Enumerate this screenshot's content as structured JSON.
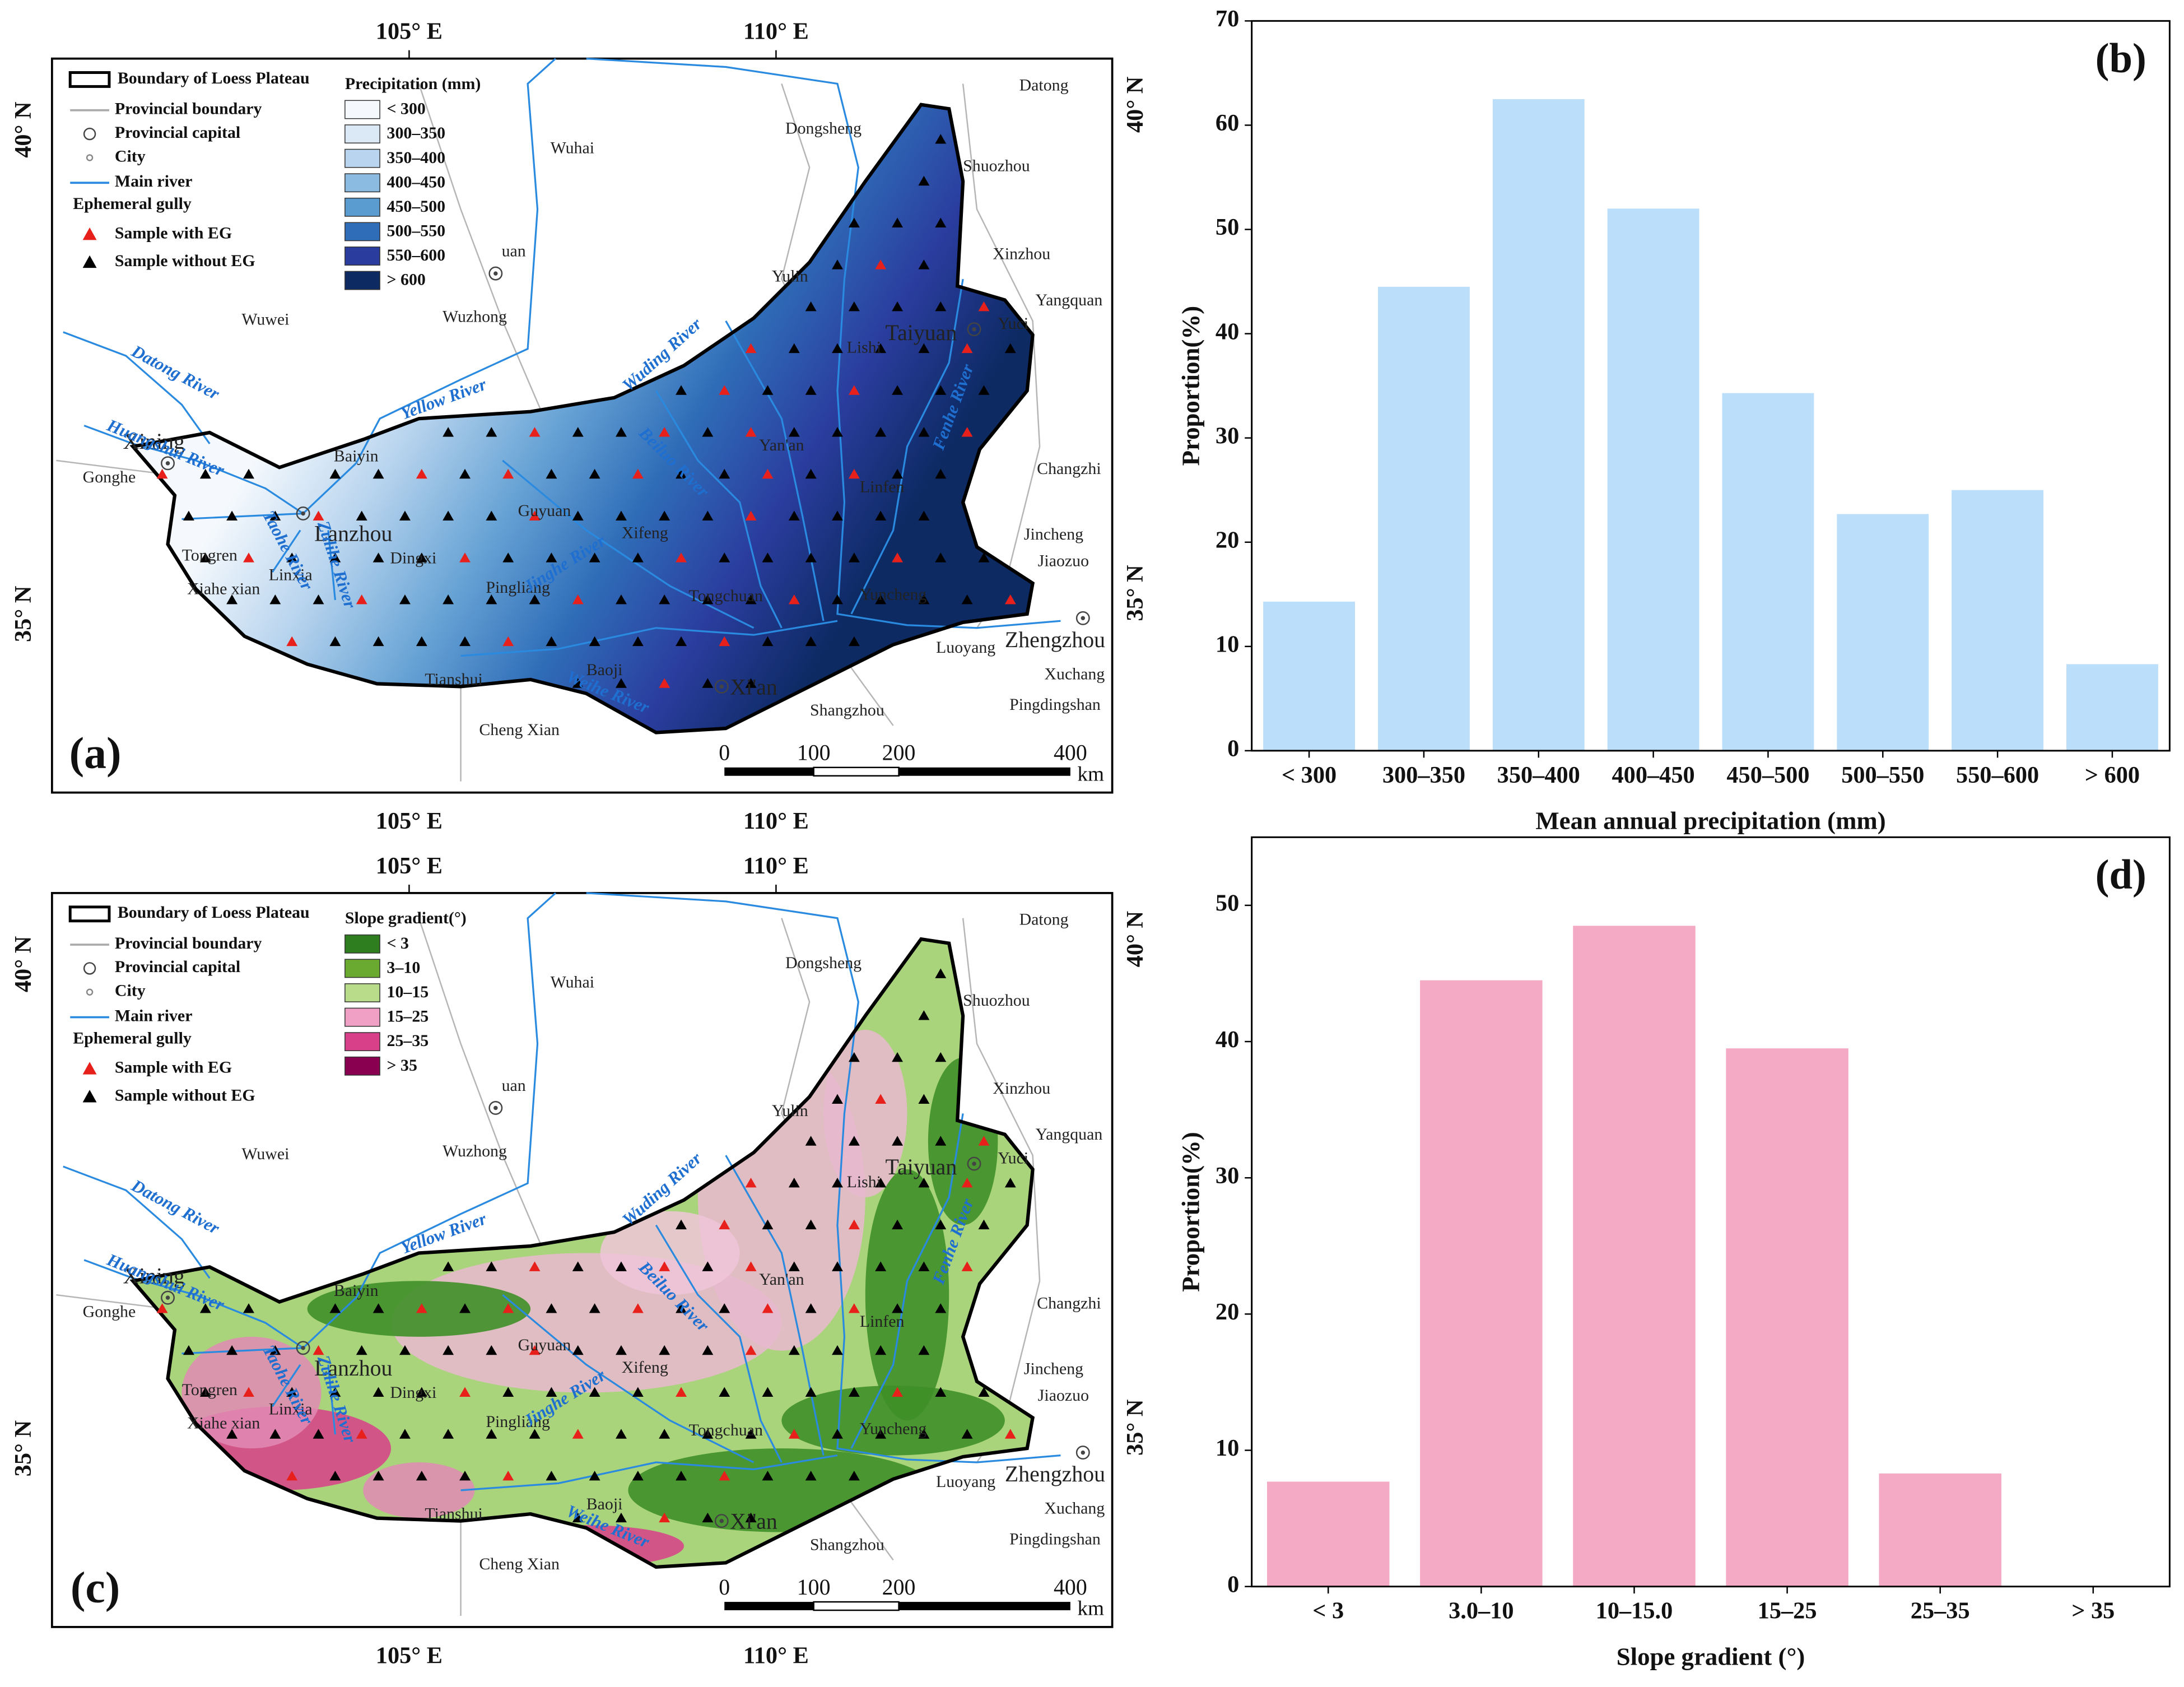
{
  "chart_data": [
    {
      "type": "bar",
      "panel_label": "(b)",
      "x_label": "Mean annual precipitation (mm)",
      "y_label": "Proportion(%)",
      "categories": [
        "< 300",
        "300–350",
        "350–400",
        "400–450",
        "450–500",
        "500–550",
        "550–600",
        "> 600"
      ],
      "values": [
        14.3,
        44.5,
        62.5,
        52,
        34.3,
        22.7,
        25,
        8.3
      ],
      "color": "#bbdefa",
      "ylim": [
        0,
        70
      ],
      "yticks": [
        0,
        10,
        20,
        30,
        40,
        50,
        60,
        70
      ]
    },
    {
      "type": "bar",
      "panel_label": "(d)",
      "x_label": "Slope gradient (°)",
      "y_label": "Proportion(%)",
      "categories": [
        "< 3",
        "3.0–10",
        "10–15.0",
        "15–25",
        "25–35",
        "> 35"
      ],
      "values": [
        7.7,
        44.5,
        48.5,
        39.5,
        8.3,
        0
      ],
      "color": "#f4a9c4",
      "ylim": [
        0,
        55
      ],
      "yticks": [
        0,
        10,
        20,
        30,
        40,
        50
      ]
    }
  ],
  "maps": {
    "legend": [
      "Boundary of Loess Plateau",
      "Provincial boundary",
      "Provincial capital",
      "City",
      "Main river",
      "Ephemeral gully",
      "Sample with EG",
      "Sample without EG"
    ],
    "lon_labels": [
      "105° E",
      "110° E"
    ],
    "lat_labels": [
      "40° N",
      "35° N"
    ],
    "scale_bar": [
      "0",
      "100",
      "200",
      "400"
    ],
    "scale_unit": "km",
    "cities": [
      "Datong",
      "Dongsheng",
      "Wuhai",
      "Shuozhou",
      "Xinzhou",
      "Yulin",
      "uan",
      "Wuwei",
      "Wuzhong",
      "Yangquan",
      "Taiyuan",
      "Yuci",
      "Lishi",
      "Xining",
      "Baiyin",
      "Yan'an",
      "Gonghe",
      "Changzhi",
      "Linfen",
      "Lanzhou",
      "Guyuan",
      "Xifeng",
      "Jincheng",
      "Dingxi",
      "Tongren",
      "Jiaozuo",
      "Linxia",
      "Pingliang",
      "Xiahe xian",
      "Tongchuan",
      "Yuncheng",
      "Zhengzhou",
      "Luoyang",
      "Tianshui",
      "Baoji",
      "Xi'an",
      "Xuchang",
      "Pingdingshan",
      "Shangzhou",
      "Cheng Xian"
    ],
    "rivers": [
      "Datong River",
      "Huangshui River",
      "Yellow River",
      "Wuding River",
      "Beiluo River",
      "Taohe River",
      "Zulihe River",
      "Jinghe River",
      "Weihe River",
      "Fenhe River"
    ],
    "panels": [
      {
        "label": "(a)",
        "scale_title": "Precipitation (mm)",
        "scale": [
          "< 300",
          "300–350",
          "350–400",
          "400–450",
          "450–500",
          "500–550",
          "550–600",
          "> 600"
        ],
        "colors": [
          "#f5f9fd",
          "#dbe9f7",
          "#b8d4ee",
          "#8cbbe2",
          "#5a9bd0",
          "#2f6db8",
          "#2a3d9e",
          "#0d2a63"
        ]
      },
      {
        "label": "(c)",
        "scale_title": "Slope gradient(°)",
        "scale": [
          "< 3",
          "3–10",
          "10–15",
          "15–25",
          "25–35",
          "> 35"
        ],
        "colors": [
          "#2e7d1f",
          "#6aaa30",
          "#b8dc8a",
          "#f0a0c4",
          "#d8408a",
          "#8a0050"
        ]
      }
    ]
  }
}
